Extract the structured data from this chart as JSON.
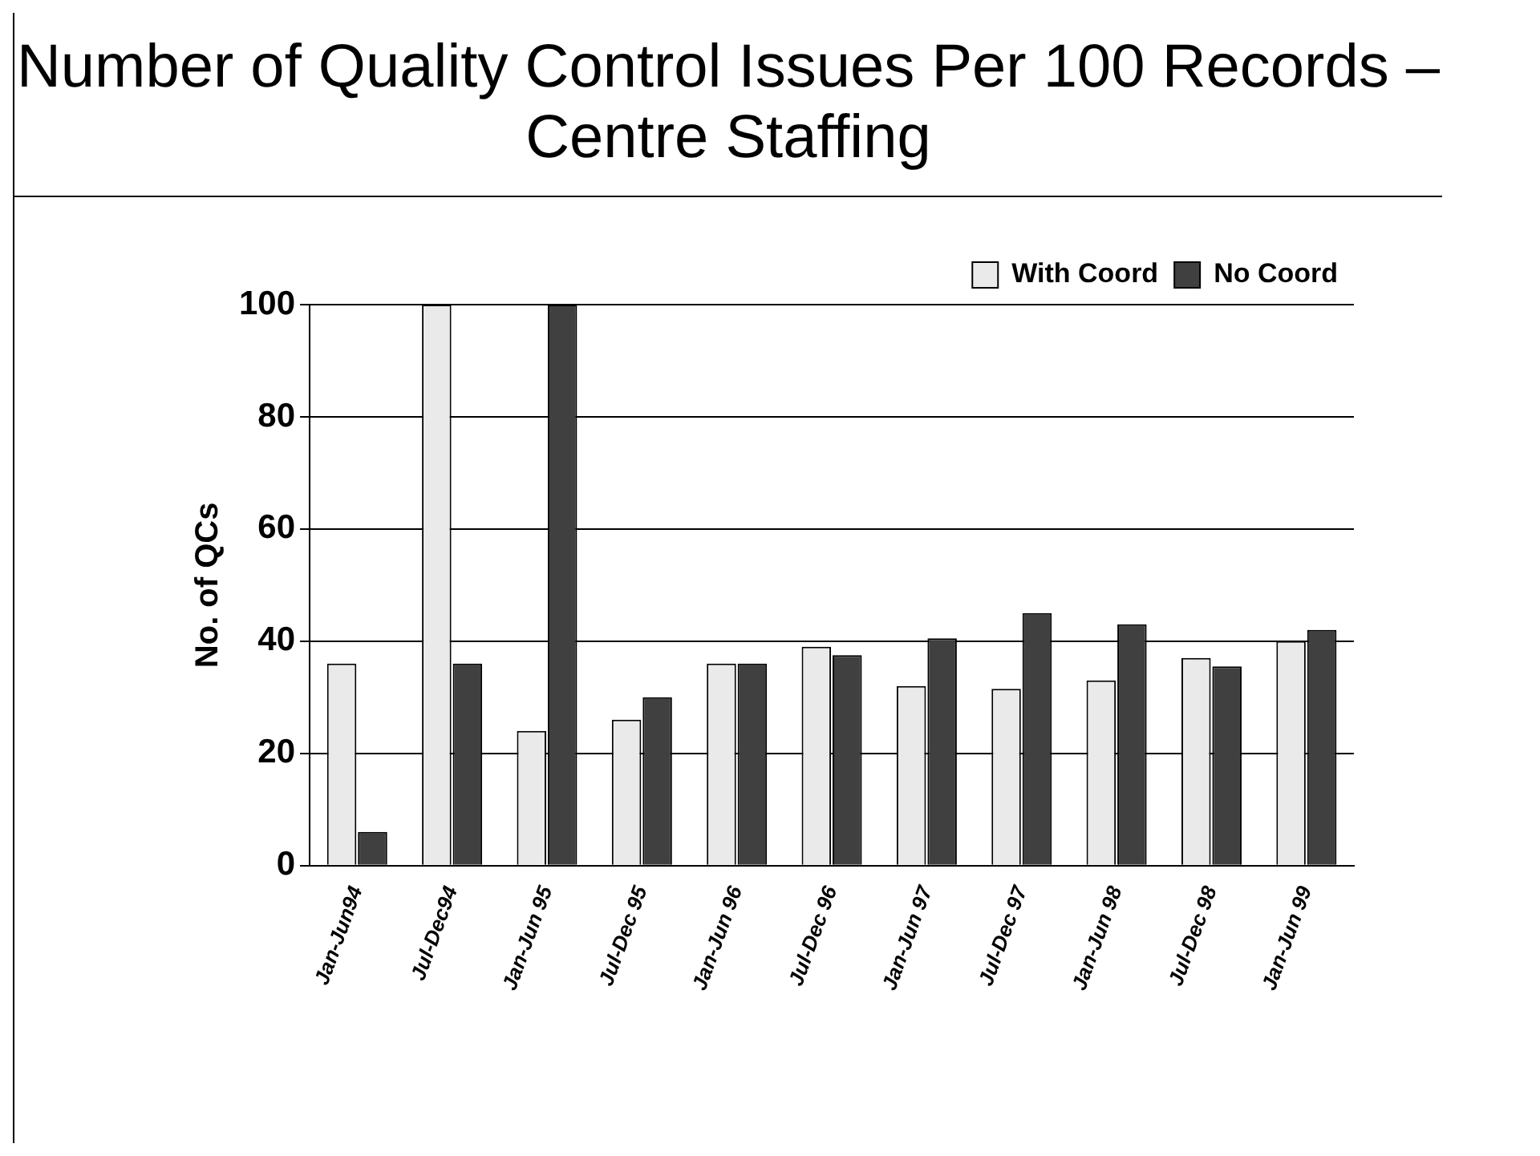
{
  "chart_data": {
    "type": "bar",
    "title": "Number of Quality Control Issues Per 100 Records – Centre Staffing",
    "ylabel": "No. of QCs",
    "categories": [
      "Jan-Jun94",
      "Jul-Dec94",
      "Jan-Jun 95",
      "Jul-Dec 95",
      "Jan-Jun 96",
      "Jul-Dec 96",
      "Jan-Jun 97",
      "Jul-Dec 97",
      "Jan-Jun 98",
      "Jul-Dec 98",
      "Jan-Jun 99"
    ],
    "series": [
      {
        "name": "With Coord",
        "color": "#eaeaea",
        "values": [
          36,
          100,
          24,
          26,
          36,
          39,
          32,
          31.5,
          33,
          37,
          40
        ]
      },
      {
        "name": "No Coord",
        "color": "#404040",
        "values": [
          6,
          36,
          100,
          30,
          36,
          37.5,
          40.5,
          45,
          43,
          35.5,
          42
        ]
      }
    ],
    "ylim": [
      0,
      100
    ],
    "yticks": [
      0,
      20,
      40,
      60,
      80,
      100
    ],
    "grid": "y",
    "legend": "top right"
  }
}
